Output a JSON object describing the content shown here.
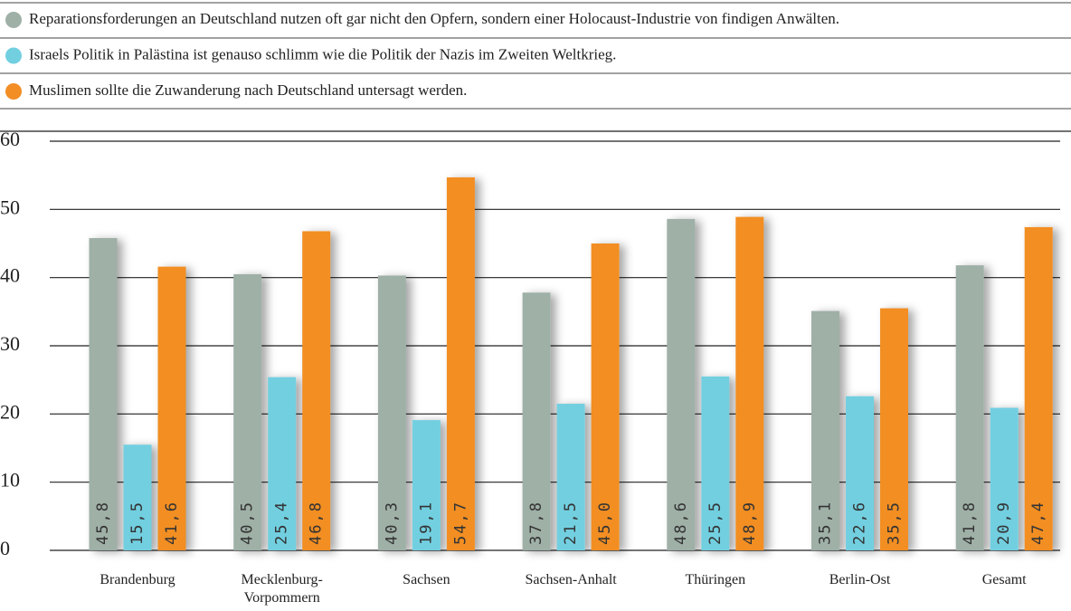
{
  "chart_data": {
    "type": "bar",
    "categories": [
      "Brandenburg",
      "Mecklenburg-Vorpommern",
      "Sachsen",
      "Sachsen-Anhalt",
      "Thüringen",
      "Berlin-Ost",
      "Gesamt"
    ],
    "series": [
      {
        "name": "Reparationsforderungen an Deutschland nutzen oft gar nicht den Opfern, sondern einer Holocaust-Industrie von findigen Anwälten.",
        "color": "#9fb0a7",
        "values": [
          45.8,
          40.5,
          40.3,
          37.8,
          48.6,
          35.1,
          41.8
        ],
        "value_labels": [
          "45,8",
          "40,5",
          "40,3",
          "37,8",
          "48,6",
          "35,1",
          "41,8"
        ]
      },
      {
        "name": "Israels Politik in Palästina ist genauso schlimm wie die Politik der Nazis im Zweiten Weltkrieg.",
        "color": "#72cfe0",
        "values": [
          15.5,
          25.4,
          19.1,
          21.5,
          25.5,
          22.6,
          20.9
        ],
        "value_labels": [
          "15,5",
          "25,4",
          "19,1",
          "21,5",
          "25,5",
          "22,6",
          "20,9"
        ]
      },
      {
        "name": "Muslimen sollte die Zuwanderung nach Deutschland untersagt werden.",
        "color": "#f28e24",
        "values": [
          41.6,
          46.8,
          54.7,
          45.0,
          48.9,
          35.5,
          47.4
        ],
        "value_labels": [
          "41,6",
          "46,8",
          "54,7",
          "45,0",
          "48,9",
          "35,5",
          "47,4"
        ]
      }
    ],
    "ylim": [
      0,
      60
    ],
    "yticks": [
      0,
      10,
      20,
      30,
      40,
      50,
      60
    ],
    "grid": true
  }
}
